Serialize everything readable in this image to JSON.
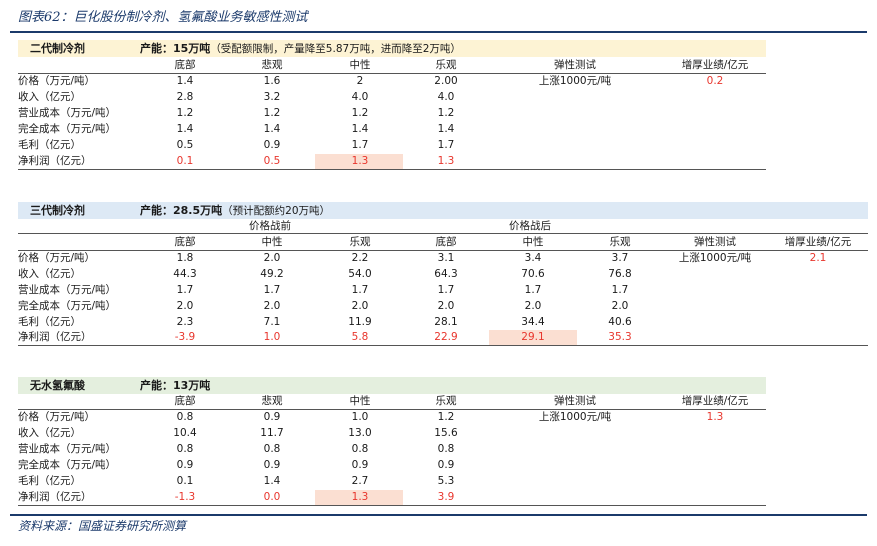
{
  "figure_title": "图表62：巨化股份制冷剂、氢氟酸业务敏感性测试",
  "source": "资料来源：国盛证券研究所测算",
  "colors": {
    "accent": "#1b3a6b",
    "band1": "#fdf3d4",
    "band2": "#dde9f5",
    "band3": "#e4efde",
    "negative": "#e8362d",
    "highlight": "#fbdfd2"
  },
  "s1": {
    "name": "二代制冷剂",
    "capacity": "产能：15万吨",
    "capacity_note": "（受配额限制，产量降至5.87万吨，进而降至2万吨）",
    "headers": [
      "底部",
      "悲观",
      "中性",
      "乐观",
      "弹性测试",
      "增厚业绩/亿元"
    ],
    "rows": [
      {
        "label": "价格（万元/吨）",
        "values": [
          "1.4",
          "1.6",
          "2",
          "2.00"
        ],
        "test": "上涨1000元/吨",
        "gain": "0.2"
      },
      {
        "label": "收入（亿元）",
        "values": [
          "2.8",
          "3.2",
          "4.0",
          "4.0"
        ]
      },
      {
        "label": "营业成本（万元/吨）",
        "values": [
          "1.2",
          "1.2",
          "1.2",
          "1.2"
        ]
      },
      {
        "label": "完全成本（万元/吨）",
        "values": [
          "1.4",
          "1.4",
          "1.4",
          "1.4"
        ]
      },
      {
        "label": "毛利（亿元）",
        "values": [
          "0.5",
          "0.9",
          "1.7",
          "1.7"
        ]
      },
      {
        "label": "净利润（亿元）",
        "values": [
          "0.1",
          "0.5",
          "1.3",
          "1.3"
        ]
      }
    ]
  },
  "s2": {
    "name": "三代制冷剂",
    "capacity": "产能：28.5万吨",
    "capacity_note": "（预计配额约20万吨）",
    "group_before": "价格战前",
    "group_after": "价格战后",
    "headers": [
      "底部",
      "中性",
      "乐观",
      "底部",
      "中性",
      "乐观",
      "弹性测试",
      "增厚业绩/亿元"
    ],
    "rows": [
      {
        "label": "价格（万元/吨）",
        "values": [
          "1.8",
          "2.0",
          "2.2",
          "3.1",
          "3.4",
          "3.7"
        ],
        "test": "上涨1000元/吨",
        "gain": "2.1"
      },
      {
        "label": "收入（亿元）",
        "values": [
          "44.3",
          "49.2",
          "54.0",
          "64.3",
          "70.6",
          "76.8"
        ]
      },
      {
        "label": "营业成本（万元/吨）",
        "values": [
          "1.7",
          "1.7",
          "1.7",
          "1.7",
          "1.7",
          "1.7"
        ]
      },
      {
        "label": "完全成本（万元/吨）",
        "values": [
          "2.0",
          "2.0",
          "2.0",
          "2.0",
          "2.0",
          "2.0"
        ]
      },
      {
        "label": "毛利（亿元）",
        "values": [
          "2.3",
          "7.1",
          "11.9",
          "28.1",
          "34.4",
          "40.6"
        ]
      },
      {
        "label": "净利润（亿元）",
        "values": [
          "-3.9",
          "1.0",
          "5.8",
          "22.9",
          "29.1",
          "35.3"
        ]
      }
    ]
  },
  "s3": {
    "name": "无水氢氟酸",
    "capacity": "产能：13万吨",
    "headers": [
      "底部",
      "悲观",
      "中性",
      "乐观",
      "弹性测试",
      "增厚业绩/亿元"
    ],
    "rows": [
      {
        "label": "价格（万元/吨）",
        "values": [
          "0.8",
          "0.9",
          "1.0",
          "1.2"
        ],
        "test": "上涨1000元/吨",
        "gain": "1.3"
      },
      {
        "label": "收入（亿元）",
        "values": [
          "10.4",
          "11.7",
          "13.0",
          "15.6"
        ]
      },
      {
        "label": "营业成本（万元/吨）",
        "values": [
          "0.8",
          "0.8",
          "0.8",
          "0.8"
        ]
      },
      {
        "label": "完全成本（万元/吨）",
        "values": [
          "0.9",
          "0.9",
          "0.9",
          "0.9"
        ]
      },
      {
        "label": "毛利（亿元）",
        "values": [
          "0.1",
          "1.4",
          "2.7",
          "5.3"
        ]
      },
      {
        "label": "净利润（亿元）",
        "values": [
          "-1.3",
          "0.0",
          "1.3",
          "3.9"
        ]
      }
    ]
  }
}
